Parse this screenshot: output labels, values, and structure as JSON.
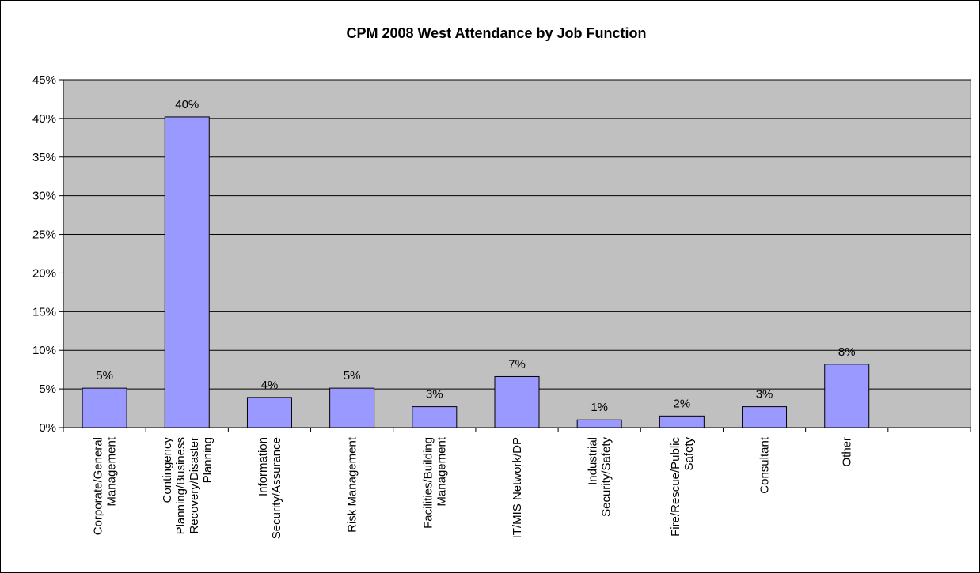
{
  "chart_data": {
    "type": "bar",
    "title": "CPM 2008 West Attendance by Job Function",
    "xlabel": "",
    "ylabel": "",
    "ylim": [
      0,
      45
    ],
    "yticks": [
      "0%",
      "5%",
      "10%",
      "15%",
      "20%",
      "25%",
      "30%",
      "35%",
      "40%",
      "45%"
    ],
    "grid": true,
    "legend": "none",
    "categories": [
      [
        "Corporate/General",
        "Management"
      ],
      [
        "Contingency",
        "Planning/Business",
        "Recovery/Disaster",
        "Planning"
      ],
      [
        "Information",
        "Security/Assurance"
      ],
      [
        "Risk Management"
      ],
      [
        "Facilities/Building",
        "Management"
      ],
      [
        "IT/MIS Network/DP"
      ],
      [
        "Industrial",
        "Security/Safety"
      ],
      [
        "Fire/Rescue/Public",
        "Safety"
      ],
      [
        "Consultant"
      ],
      [
        "Other"
      ]
    ],
    "values": [
      5.1,
      40.2,
      3.9,
      5.1,
      2.7,
      6.6,
      1.0,
      1.5,
      2.7,
      8.2
    ],
    "data_labels": [
      "5%",
      "40%",
      "4%",
      "5%",
      "3%",
      "7%",
      "1%",
      "2%",
      "3%",
      "8%"
    ],
    "colors": {
      "plot_bg": "#c0c0c0",
      "bar_fill": "#9999ff",
      "bar_stroke": "#000000",
      "grid": "#000000"
    }
  }
}
